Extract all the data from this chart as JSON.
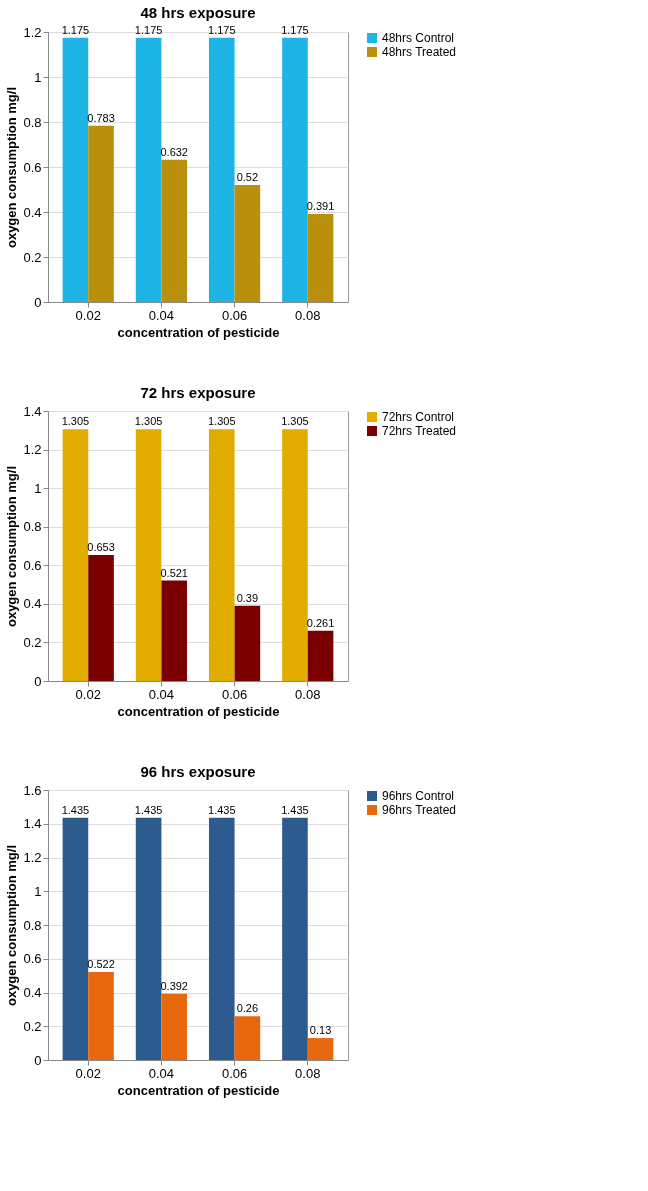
{
  "chart_data": [
    {
      "type": "bar",
      "title": "48 hrs exposure",
      "xlabel": "concentration  of pesticide",
      "ylabel": "oxygen consumption mg/l",
      "categories": [
        "0.02",
        "0.04",
        "0.06",
        "0.08"
      ],
      "series": [
        {
          "name": "48hrs  Control",
          "color": "#1fb4e6",
          "values": [
            1.175,
            1.175,
            1.175,
            1.175
          ]
        },
        {
          "name": "48hrs  Treated",
          "color": "#b8900c",
          "values": [
            0.783,
            0.632,
            0.52,
            0.391
          ]
        }
      ],
      "ylim": [
        0,
        1.2
      ],
      "yticks": [
        0,
        0.2,
        0.4,
        0.6,
        0.8,
        1,
        1.2
      ],
      "data_labels": true,
      "legend": "right",
      "grid": "y"
    },
    {
      "type": "bar",
      "title": "72 hrs exposure",
      "xlabel": "concentration of pesticide",
      "ylabel": "oxygen consumption  mg/l",
      "categories": [
        "0.02",
        "0.04",
        "0.06",
        "0.08"
      ],
      "series": [
        {
          "name": "72hrs  Control",
          "color": "#e2ad00",
          "values": [
            1.305,
            1.305,
            1.305,
            1.305
          ]
        },
        {
          "name": "72hrs  Treated",
          "color": "#7a0000",
          "values": [
            0.653,
            0.521,
            0.39,
            0.261
          ]
        }
      ],
      "ylim": [
        0,
        1.4
      ],
      "yticks": [
        0,
        0.2,
        0.4,
        0.6,
        0.8,
        1,
        1.2,
        1.4
      ],
      "data_labels": true,
      "legend": "right",
      "grid": "y"
    },
    {
      "type": "bar",
      "title": "96 hrs exposure",
      "xlabel": "concentration of pesticide",
      "ylabel": "oxygen consumption mg/l",
      "categories": [
        "0.02",
        "0.04",
        "0.06",
        "0.08"
      ],
      "series": [
        {
          "name": "96hrs  Control",
          "color": "#2d5b8e",
          "values": [
            1.435,
            1.435,
            1.435,
            1.435
          ]
        },
        {
          "name": "96hrs  Treated",
          "color": "#e8680e",
          "values": [
            0.522,
            0.392,
            0.26,
            0.13
          ]
        }
      ],
      "ylim": [
        0,
        1.6
      ],
      "yticks": [
        0,
        0.2,
        0.4,
        0.6,
        0.8,
        1,
        1.2,
        1.4,
        1.6
      ],
      "data_labels": true,
      "legend": "right",
      "grid": "y"
    }
  ]
}
